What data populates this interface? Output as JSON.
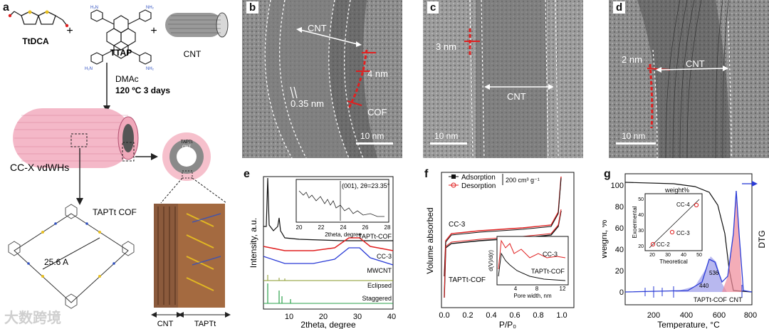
{
  "panel_a": {
    "label": "a",
    "reagent1": "TtDCA",
    "reagent2": "TTAP",
    "reagent3": "CNT",
    "plus": "+",
    "solvent": "DMAc",
    "conditions": "120 ºC 3 days",
    "product": "CC-X vdWHs",
    "cof_label": "TAPTt COF",
    "pore_size": "25.6 A",
    "ring_outer": "TAPTt",
    "ring_inner": "CNT",
    "bottom_left": "CNT",
    "bottom_right": "TAPTt"
  },
  "panel_b": {
    "label": "b",
    "cnt": "CNT",
    "spacing": "0.35 nm",
    "thick": "4 nm",
    "cof": "COF",
    "scale": "10 nm"
  },
  "panel_c": {
    "label": "c",
    "thick": "3 nm",
    "cnt": "CNT",
    "scale": "10 nm"
  },
  "panel_d": {
    "label": "d",
    "thick": "2 nm",
    "cnt": "CNT",
    "scale": "10 nm"
  },
  "panel_e": {
    "label": "e",
    "ylabel": "Intensity, a.u.",
    "xlabel": "2theta, degree",
    "xticks": [
      "10",
      "20",
      "30",
      "40"
    ],
    "traces": [
      "TAPTt-COF",
      "CC-3",
      "MWCNT",
      "Eclipsed",
      "Staggered"
    ],
    "inset_title": "(001), 2θ=23.35°",
    "inset_xticks": [
      "20",
      "22",
      "24",
      "26",
      "28"
    ],
    "inset_xlabel": "2theta, degree",
    "colors": {
      "taptt": "#111111",
      "cc3": "#e02020",
      "mwcnt": "#2a3bd6",
      "eclipsed": "#8a9a2a",
      "staggered": "#2aa04a"
    }
  },
  "panel_f": {
    "label": "f",
    "ylabel": "Volume absorbed",
    "xlabel": "P/P₀",
    "xticks": [
      "0.0",
      "0.2",
      "0.4",
      "0.6",
      "0.8",
      "1.0"
    ],
    "legend_ads": "Adsorption",
    "legend_des": "Desorption",
    "scale_label": "200 cm³ g⁻¹",
    "cc3": "CC-3",
    "taptt": "TAPTt-COF",
    "inset_ylabel": "d(V)/d(r)",
    "inset_xlabel": "Pore width, nm",
    "inset_xticks": [
      "4",
      "8",
      "12"
    ],
    "inset_cc3": "CC-3",
    "inset_taptt": "TAPTt-COF"
  },
  "panel_g": {
    "label": "g",
    "ylabel": "Weight, %",
    "ylabel_right": "DTG",
    "xlabel": "Temperature, °C",
    "yticks": [
      "0",
      "20",
      "40",
      "60",
      "80",
      "100"
    ],
    "xticks": [
      "200",
      "400",
      "600",
      "800"
    ],
    "peak1": "440",
    "peak2": "536",
    "taptt": "TAPTt-COF",
    "cnt": "CNT",
    "inset_title": "weight%",
    "inset_ylabel": "Exoermental",
    "inset_xlabel": "Theoretical",
    "inset_xticks": [
      "20",
      "30",
      "40",
      "50"
    ],
    "inset_yticks": [
      "20",
      "30",
      "40",
      "50"
    ],
    "inset_points": [
      {
        "label": "CC-2",
        "x": 21,
        "y": 21
      },
      {
        "label": "CC-3",
        "x": 32,
        "y": 28
      },
      {
        "label": "CC-4",
        "x": 47,
        "y": 46
      }
    ]
  },
  "watermark": "大数跨境"
}
